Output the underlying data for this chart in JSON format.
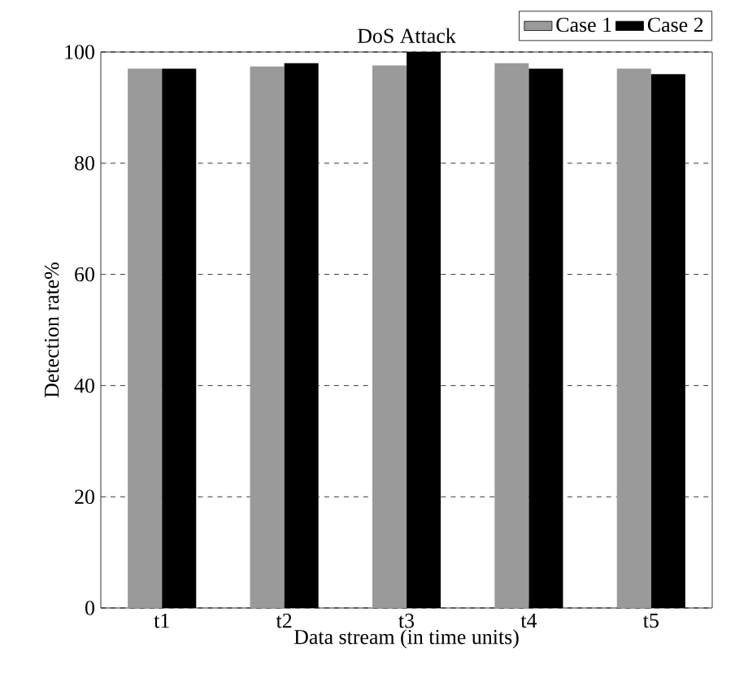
{
  "chart_data": {
    "type": "bar",
    "title": "DoS Attack",
    "xlabel": "Data stream (in time units)",
    "ylabel": "Detection rate%",
    "categories": [
      "t1",
      "t2",
      "t3",
      "t4",
      "t5"
    ],
    "series": [
      {
        "name": "Case 1",
        "color": "#9a9a9a",
        "values": [
          97,
          97.4,
          97.6,
          98,
          97
        ]
      },
      {
        "name": "Case 2",
        "color": "#000000",
        "values": [
          97,
          98,
          100,
          97,
          96
        ]
      }
    ],
    "ylim": [
      0,
      100
    ],
    "yticks": [
      0,
      20,
      40,
      60,
      80,
      100
    ],
    "grid": "y",
    "legend": "top right"
  }
}
